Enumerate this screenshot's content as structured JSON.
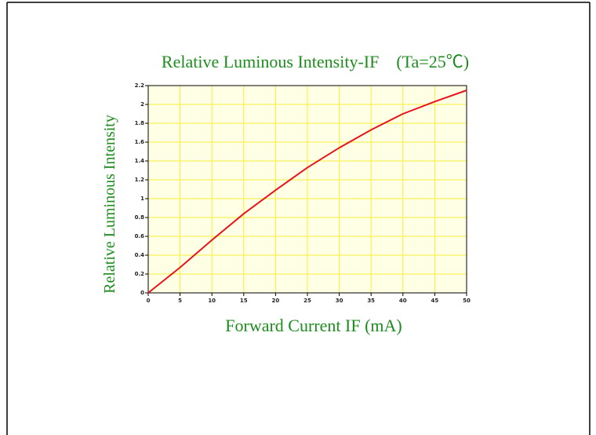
{
  "chart_data": {
    "type": "line",
    "title": "Relative Luminous Intensity-IF　(Ta=25℃)",
    "x_label": "Forward Current IF (mA)",
    "y_label": "Relative Luminous Intensity",
    "x": [
      0,
      5,
      10,
      15,
      20,
      25,
      30,
      35,
      40,
      45,
      50
    ],
    "series": [
      {
        "name": "Relative Luminous Intensity",
        "color": "#e8141c",
        "values": [
          0,
          0.27,
          0.56,
          0.84,
          1.09,
          1.33,
          1.54,
          1.73,
          1.9,
          2.03,
          2.15
        ]
      }
    ],
    "xlim": [
      0,
      50
    ],
    "xticks": [
      0,
      5,
      10,
      15,
      20,
      25,
      30,
      35,
      40,
      45,
      50
    ],
    "ylim": [
      0,
      2.2
    ],
    "yticks": [
      0,
      0.2,
      0.4,
      0.6,
      0.8,
      1,
      1.2,
      1.4,
      1.6,
      1.8,
      2,
      2.2
    ],
    "grid": true
  }
}
